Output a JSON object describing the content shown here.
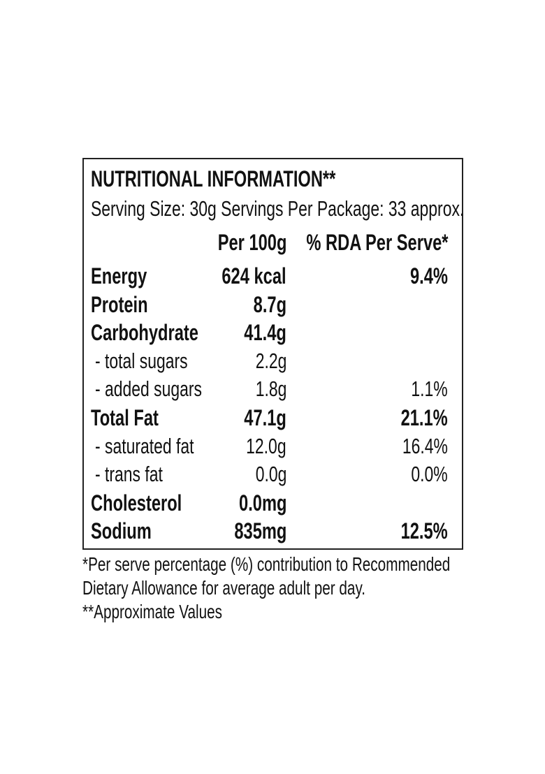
{
  "title": "NUTRITIONAL INFORMATION**",
  "serving_line": "Serving Size: 30g  Servings Per Package: 33 approx.",
  "columns": {
    "per100g": "Per 100g",
    "rda": "% RDA Per Serve*"
  },
  "rows": [
    {
      "label": "Energy",
      "per100g": "624 kcal",
      "rda": "9.4%",
      "bold": true
    },
    {
      "label": "Protein",
      "per100g": "8.7g",
      "rda": "",
      "bold": true
    },
    {
      "label": "Carbohydrate",
      "per100g": "41.4g",
      "rda": "",
      "bold": true
    },
    {
      "label": "- total sugars",
      "per100g": "2.2g",
      "rda": "",
      "bold": false
    },
    {
      "label": "- added sugars",
      "per100g": "1.8g",
      "rda": "1.1%",
      "bold": false
    },
    {
      "label": "Total Fat",
      "per100g": "47.1g",
      "rda": "21.1%",
      "bold": true
    },
    {
      "label": "- saturated fat",
      "per100g": "12.0g",
      "rda": "16.4%",
      "bold": false
    },
    {
      "label": "- trans fat",
      "per100g": "0.0g",
      "rda": "0.0%",
      "bold": false
    },
    {
      "label": "Cholesterol",
      "per100g": "0.0mg",
      "rda": "",
      "bold": true
    },
    {
      "label": "Sodium",
      "per100g": "835mg",
      "rda": "12.5%",
      "bold": true
    }
  ],
  "footnotes": [
    "*Per serve percentage (%) contribution to Recommended",
    "Dietary Allowance for average adult per day.",
    "**Approximate Values"
  ]
}
